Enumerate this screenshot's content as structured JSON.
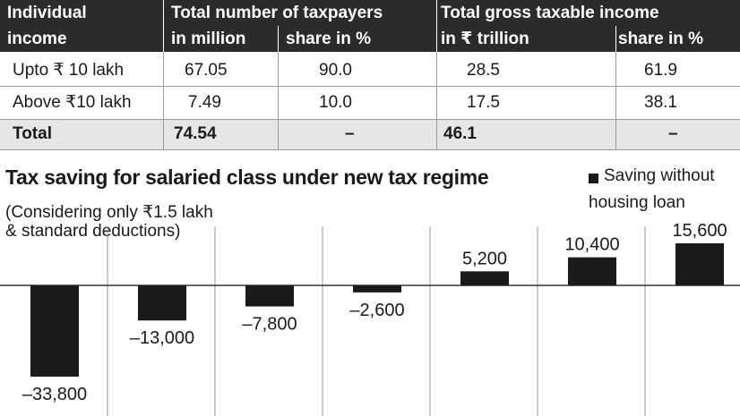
{
  "table": {
    "headers": {
      "col1_line1": "Individual",
      "col1_line2": "income",
      "group1": "Total number of taxpayers",
      "group2": "Total gross taxable income",
      "sub1": "in million",
      "sub2": "share in %",
      "sub3": "in ₹ trillion",
      "sub4": "share in %"
    },
    "rows": [
      {
        "label": "Upto ₹ 10 lakh",
        "taxpayers_million": "67.05",
        "taxpayers_share": "90.0",
        "income_trillion": "28.5",
        "income_share": "61.9"
      },
      {
        "label": "Above ₹10 lakh",
        "taxpayers_million": "7.49",
        "taxpayers_share": "10.0",
        "income_trillion": "17.5",
        "income_share": "38.1"
      },
      {
        "label": "Total",
        "taxpayers_million": "74.54",
        "taxpayers_share": "–",
        "income_trillion": "46.1",
        "income_share": "–"
      }
    ]
  },
  "chart_data": {
    "type": "bar",
    "title": "Tax saving for salaried class under new tax regime",
    "subtitle_line1": "(Considering only ₹1.5 lakh",
    "subtitle_line2": "& standard deductions)",
    "legend_line1": "Saving without",
    "legend_line2": "housing loan",
    "series": [
      {
        "name": "Saving without housing loan",
        "values": [
          -33800,
          -13000,
          -7800,
          -2600,
          5200,
          10400,
          15600
        ]
      }
    ],
    "value_labels": [
      "–33,800",
      "–13,000",
      "–7,800",
      "–2,600",
      "5,200",
      "10,400",
      "15,600"
    ],
    "ylim": [
      -33800,
      15600
    ],
    "colors": {
      "bar": "#1a1a1a",
      "grid": "#9a9a9a",
      "zero_line": "#333333"
    }
  }
}
